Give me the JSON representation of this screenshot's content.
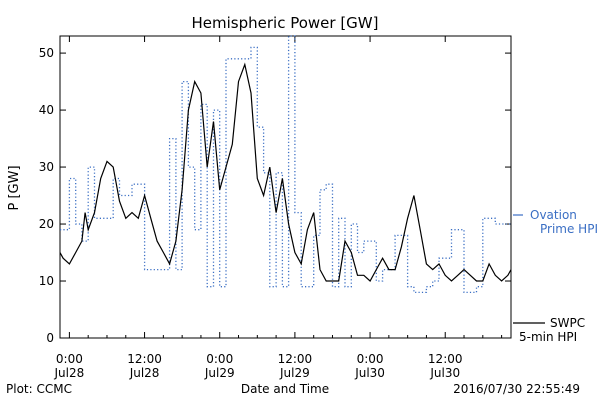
{
  "chart_data": {
    "type": "line",
    "title": "Hemispheric Power [GW]",
    "xlabel": "Date and Time",
    "ylabel": "P [GW]",
    "ylim": [
      0,
      53
    ],
    "xlim_hours": [
      -1.5,
      70.5
    ],
    "y_ticks": [
      0,
      10,
      20,
      30,
      40,
      50
    ],
    "x_ticks": [
      {
        "time": "0:00",
        "date": "Jul28",
        "hour": 0
      },
      {
        "time": "12:00",
        "date": "Jul28",
        "hour": 12
      },
      {
        "time": "0:00",
        "date": "Jul29",
        "hour": 24
      },
      {
        "time": "12:00",
        "date": "Jul29",
        "hour": 36
      },
      {
        "time": "0:00",
        "date": "Jul30",
        "hour": 48
      },
      {
        "time": "12:00",
        "date": "Jul30",
        "hour": 60
      }
    ],
    "grid": false,
    "legend_position": "right",
    "series": [
      {
        "name": "Ovation Prime HPI",
        "legend_lines": [
          "Ovation",
          "Prime HPI"
        ],
        "color": "#3b6fc4",
        "style": "dotted-step",
        "x": [
          -1.5,
          -1,
          0,
          1,
          2,
          3,
          4,
          5,
          6,
          7,
          8,
          9,
          10,
          11,
          12,
          13,
          14,
          15,
          16,
          17,
          18,
          19,
          20,
          21,
          22,
          23,
          24,
          25,
          26,
          27,
          28,
          29,
          30,
          31,
          32,
          33,
          34,
          35,
          36,
          37,
          38,
          39,
          40,
          41,
          42,
          43,
          44,
          45,
          46,
          47,
          48,
          49,
          50,
          51,
          52,
          53,
          54,
          55,
          56,
          57,
          58,
          59,
          60,
          61,
          62,
          63,
          64,
          65,
          66,
          67,
          68,
          69,
          70
        ],
        "y": [
          19,
          19,
          28,
          20,
          17,
          30,
          21,
          21,
          21,
          28,
          25,
          25,
          27,
          27,
          12,
          12,
          12,
          12,
          35,
          12,
          45,
          30,
          19,
          41,
          9,
          40,
          9,
          49,
          49,
          49,
          49,
          51,
          37,
          29,
          9,
          29,
          9,
          53,
          22,
          9,
          9,
          18,
          26,
          27,
          9,
          21,
          9,
          20,
          15,
          17,
          17,
          10,
          12,
          12,
          18,
          18,
          9,
          8,
          8,
          9,
          10,
          14,
          14,
          19,
          19,
          8,
          8,
          9,
          21,
          21,
          20,
          20,
          20
        ]
      },
      {
        "name": "SWPC 5-min HPI",
        "legend_lines": [
          "SWPC",
          "5-min HPI"
        ],
        "color": "#000000",
        "style": "solid",
        "x": [
          -1.5,
          -1,
          0,
          1,
          2,
          2.5,
          3,
          4,
          5,
          6,
          7,
          8,
          9,
          10,
          11,
          12,
          13,
          14,
          15,
          16,
          17,
          18,
          19,
          20,
          21,
          22,
          23,
          24,
          25,
          26,
          27,
          28,
          29,
          30,
          31,
          32,
          33,
          34,
          35,
          36,
          37,
          38,
          39,
          40,
          41,
          42,
          43,
          44,
          45,
          46,
          47,
          48,
          49,
          50,
          51,
          52,
          53,
          54,
          55,
          56,
          57,
          58,
          59,
          60,
          61,
          62,
          63,
          64,
          65,
          66,
          67,
          68,
          69,
          70,
          70.5
        ],
        "y": [
          15,
          14,
          13,
          15,
          17,
          22,
          19,
          22,
          28,
          31,
          30,
          24,
          21,
          22,
          21,
          25,
          21,
          17,
          15,
          13,
          17,
          26,
          40,
          45,
          43,
          30,
          38,
          26,
          30,
          34,
          45,
          48,
          43,
          28,
          25,
          30,
          22,
          28,
          20,
          15,
          13,
          19,
          22,
          12,
          10,
          10,
          10,
          17,
          15,
          11,
          11,
          10,
          12,
          14,
          12,
          12,
          16,
          21,
          25,
          19,
          13,
          12,
          13,
          11,
          10,
          11,
          12,
          11,
          10,
          10,
          13,
          11,
          10,
          11,
          12
        ]
      }
    ]
  },
  "footer": {
    "plot_credit": "Plot: CCMC",
    "timestamp": "2016/07/30 22:55:49"
  }
}
